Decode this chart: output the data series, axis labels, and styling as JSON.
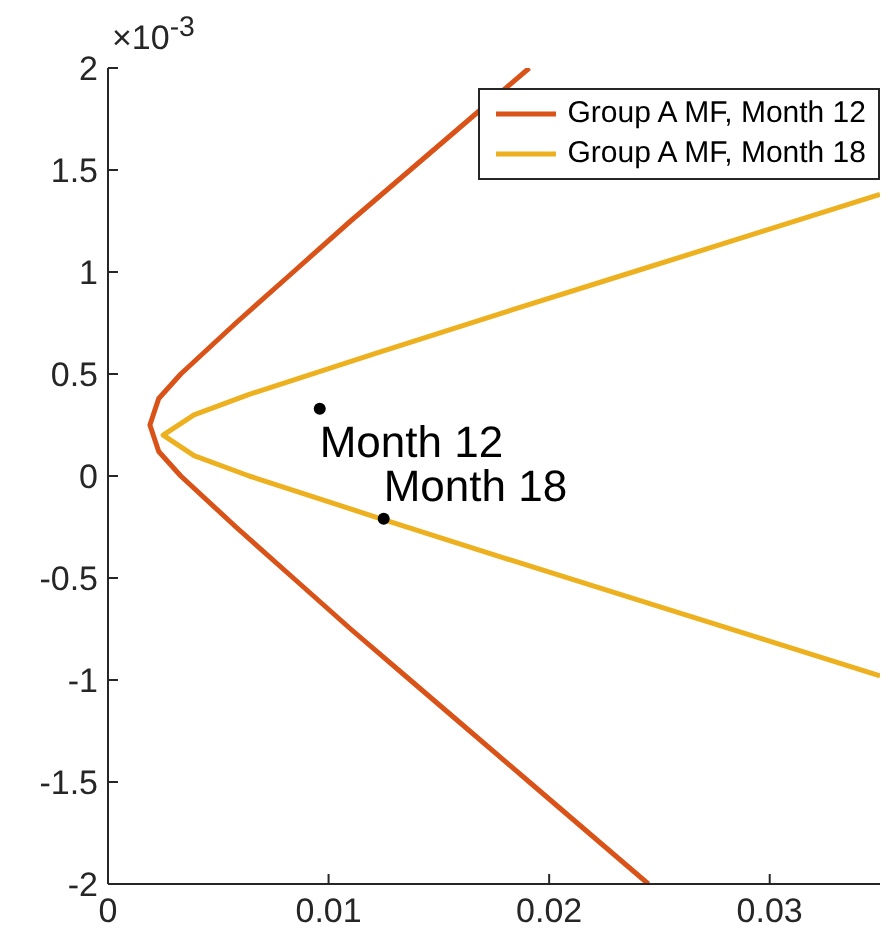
{
  "chart_data": {
    "type": "line",
    "xlim": [
      0,
      0.035
    ],
    "xticks": [
      0,
      0.01,
      0.02,
      0.03
    ],
    "ylim": [
      -2,
      2
    ],
    "yticks": [
      -2,
      -1.5,
      -1,
      -0.5,
      0,
      0.5,
      1,
      1.5,
      2
    ],
    "grid": false,
    "legend": "top right",
    "series": [
      {
        "type": "scatter",
        "color": "#000000",
        "marker": "circle",
        "x": [
          0.0096,
          0.0125
        ],
        "values": [
          0.33,
          -0.21
        ]
      },
      {
        "name": "Group A MF, Month 12",
        "color": "#d95319",
        "marker": "none",
        "x": [
          0.0191,
          0.0164,
          0.0137,
          0.011,
          0.0084,
          0.0058,
          0.0033,
          0.0023,
          0.0019,
          0.0023,
          0.0033,
          0.0058,
          0.0084,
          0.011,
          0.0137,
          0.0164,
          0.0191,
          0.0218,
          0.0245
        ],
        "values": [
          2,
          1.75,
          1.5,
          1.25,
          1,
          0.75,
          0.5,
          0.38,
          0.25,
          0.12,
          0,
          -0.25,
          -0.5,
          -0.75,
          -1,
          -1.25,
          -1.5,
          -1.75,
          -2
        ]
      },
      {
        "name": "Group A MF, Month 18",
        "color": "#edb120",
        "marker": "none",
        "x": [
          0.035,
          0.0297,
          0.0238,
          0.0179,
          0.0121,
          0.0064,
          0.0039,
          0.0025,
          0.0039,
          0.0064,
          0.0121,
          0.0179,
          0.0238,
          0.0297,
          0.035
        ],
        "values": [
          1.38,
          1.2,
          1,
          0.8,
          0.6,
          0.4,
          0.3,
          0.2,
          0.1,
          0,
          -0.2,
          -0.4,
          -0.6,
          -0.8,
          -0.98
        ]
      }
    ],
    "annotations": [
      "×10$^{-3}$",
      {
        "text": "Month 12",
        "x": 0.0096,
        "y": 0.33
      },
      {
        "text": "Month 18",
        "x": 0.0125,
        "y": -0.21
      }
    ]
  }
}
